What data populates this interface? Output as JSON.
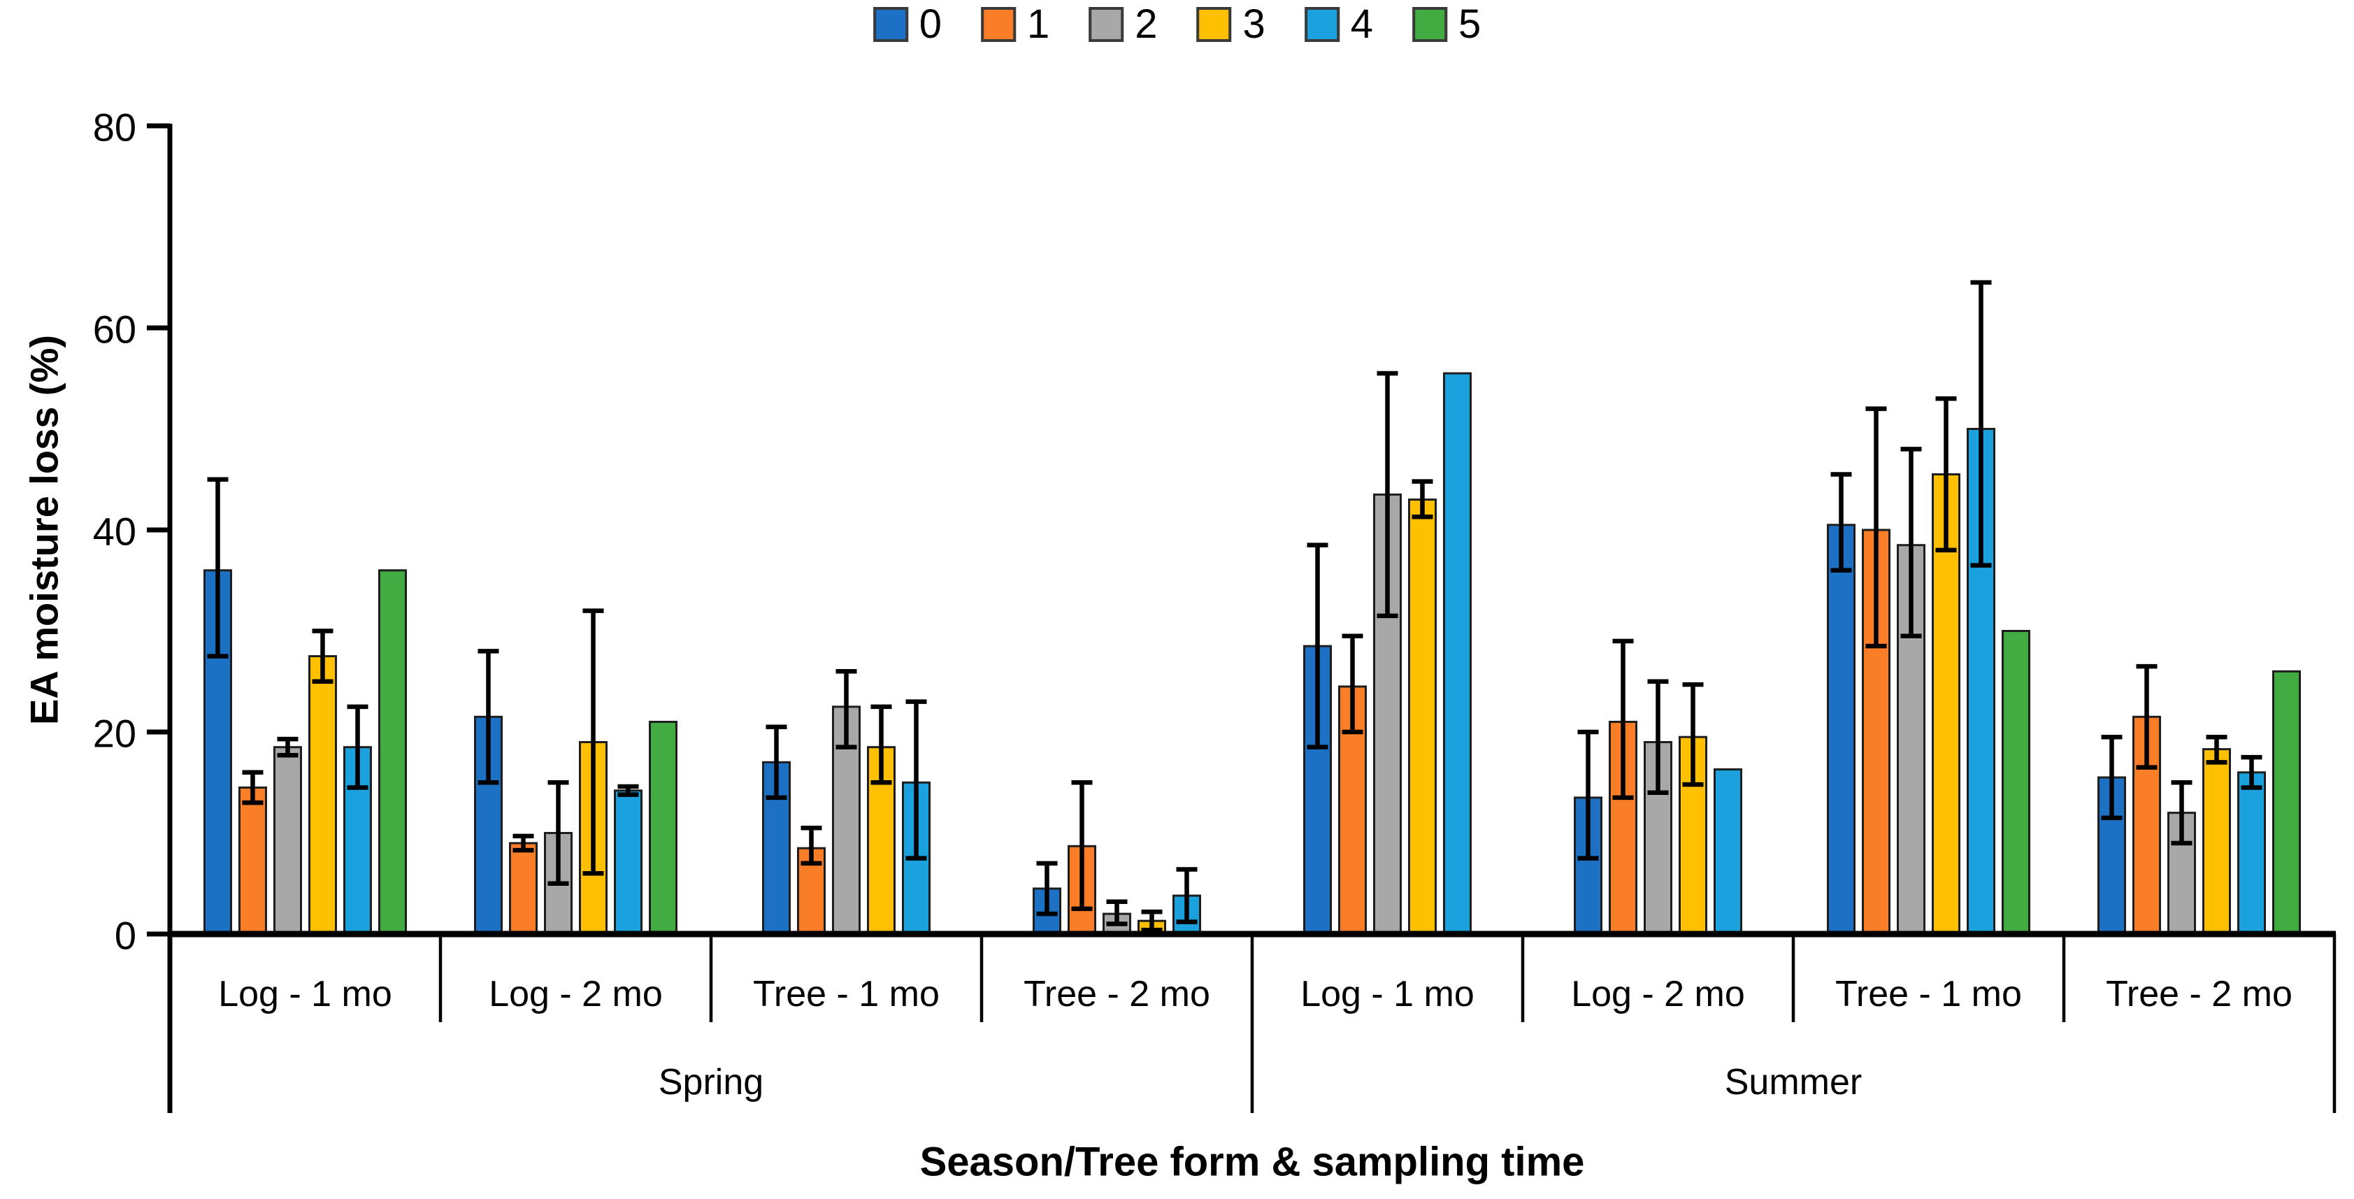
{
  "figure": {
    "background": "#ffffff"
  },
  "chart_data": {
    "type": "bar",
    "title": "",
    "ylabel": "EA moisture loss (%)",
    "xlabel": "Season/Tree form & sampling time",
    "ylim": [
      0,
      80
    ],
    "yticks": [
      0,
      20,
      40,
      60,
      80
    ],
    "grid": false,
    "legend_position": "top-center",
    "error_bars": true,
    "bar_outline_color": "#1e1e1e",
    "error_bar_color": "#000000",
    "series": [
      {
        "name": "0",
        "color": "#1d71c5"
      },
      {
        "name": "1",
        "color": "#fa7d28"
      },
      {
        "name": "2",
        "color": "#a8a8a8"
      },
      {
        "name": "3",
        "color": "#ffc002"
      },
      {
        "name": "4",
        "color": "#1ba1dd"
      },
      {
        "name": "5",
        "color": "#42ac42"
      }
    ],
    "seasons": [
      {
        "label": "Spring",
        "groups": [
          {
            "label": "Log - 1 mo",
            "bars": [
              {
                "series": "0",
                "value": 36,
                "err_low": 27.5,
                "err_high": 45
              },
              {
                "series": "1",
                "value": 14.5,
                "err_low": 13,
                "err_high": 16
              },
              {
                "series": "2",
                "value": 18.5,
                "err_low": 17.7,
                "err_high": 19.3
              },
              {
                "series": "3",
                "value": 27.5,
                "err_low": 25,
                "err_high": 30
              },
              {
                "series": "4",
                "value": 18.5,
                "err_low": 14.5,
                "err_high": 22.5
              },
              {
                "series": "5",
                "value": 36,
                "err_low": null,
                "err_high": null
              }
            ]
          },
          {
            "label": "Log - 2 mo",
            "bars": [
              {
                "series": "0",
                "value": 21.5,
                "err_low": 15,
                "err_high": 28
              },
              {
                "series": "1",
                "value": 9,
                "err_low": 8.3,
                "err_high": 9.7
              },
              {
                "series": "2",
                "value": 10,
                "err_low": 5,
                "err_high": 15
              },
              {
                "series": "3",
                "value": 19,
                "err_low": 6,
                "err_high": 32
              },
              {
                "series": "4",
                "value": 14.2,
                "err_low": 13.8,
                "err_high": 14.6
              },
              {
                "series": "5",
                "value": 21,
                "err_low": null,
                "err_high": null
              }
            ]
          },
          {
            "label": "Tree - 1 mo",
            "bars": [
              {
                "series": "0",
                "value": 17,
                "err_low": 13.5,
                "err_high": 20.5
              },
              {
                "series": "1",
                "value": 8.5,
                "err_low": 7,
                "err_high": 10.5
              },
              {
                "series": "2",
                "value": 22.5,
                "err_low": 18.5,
                "err_high": 26
              },
              {
                "series": "3",
                "value": 18.5,
                "err_low": 15,
                "err_high": 22.5
              },
              {
                "series": "4",
                "value": 15,
                "err_low": 7.5,
                "err_high": 23
              }
            ]
          },
          {
            "label": "Tree - 2 mo",
            "bars": [
              {
                "series": "0",
                "value": 4.5,
                "err_low": 2,
                "err_high": 7
              },
              {
                "series": "1",
                "value": 8.7,
                "err_low": 2.5,
                "err_high": 15
              },
              {
                "series": "2",
                "value": 2,
                "err_low": 1,
                "err_high": 3.2
              },
              {
                "series": "3",
                "value": 1.3,
                "err_low": 0.4,
                "err_high": 2.2
              },
              {
                "series": "4",
                "value": 3.8,
                "err_low": 1.2,
                "err_high": 6.4
              }
            ]
          }
        ]
      },
      {
        "label": "Summer",
        "groups": [
          {
            "label": "Log - 1 mo",
            "bars": [
              {
                "series": "0",
                "value": 28.5,
                "err_low": 18.5,
                "err_high": 38.5
              },
              {
                "series": "1",
                "value": 24.5,
                "err_low": 20,
                "err_high": 29.5
              },
              {
                "series": "2",
                "value": 43.5,
                "err_low": 31.5,
                "err_high": 55.5
              },
              {
                "series": "3",
                "value": 43,
                "err_low": 41.3,
                "err_high": 44.8
              },
              {
                "series": "4",
                "value": 55.5,
                "err_low": null,
                "err_high": null
              }
            ]
          },
          {
            "label": "Log - 2 mo",
            "bars": [
              {
                "series": "0",
                "value": 13.5,
                "err_low": 7.5,
                "err_high": 20
              },
              {
                "series": "1",
                "value": 21,
                "err_low": 13.5,
                "err_high": 29
              },
              {
                "series": "2",
                "value": 19,
                "err_low": 14,
                "err_high": 25
              },
              {
                "series": "3",
                "value": 19.5,
                "err_low": 14.8,
                "err_high": 24.7
              },
              {
                "series": "4",
                "value": 16.3,
                "err_low": null,
                "err_high": null
              }
            ]
          },
          {
            "label": "Tree - 1 mo",
            "bars": [
              {
                "series": "0",
                "value": 40.5,
                "err_low": 36,
                "err_high": 45.5
              },
              {
                "series": "1",
                "value": 40,
                "err_low": 28.5,
                "err_high": 52
              },
              {
                "series": "2",
                "value": 38.5,
                "err_low": 29.5,
                "err_high": 48
              },
              {
                "series": "3",
                "value": 45.5,
                "err_low": 38,
                "err_high": 53
              },
              {
                "series": "4",
                "value": 50,
                "err_low": 36.5,
                "err_high": 64.5
              },
              {
                "series": "5",
                "value": 30,
                "err_low": null,
                "err_high": null
              }
            ]
          },
          {
            "label": "Tree - 2 mo",
            "bars": [
              {
                "series": "0",
                "value": 15.5,
                "err_low": 11.5,
                "err_high": 19.5
              },
              {
                "series": "1",
                "value": 21.5,
                "err_low": 16.5,
                "err_high": 26.5
              },
              {
                "series": "2",
                "value": 12,
                "err_low": 9,
                "err_high": 15
              },
              {
                "series": "3",
                "value": 18.3,
                "err_low": 17,
                "err_high": 19.5
              },
              {
                "series": "4",
                "value": 16,
                "err_low": 14.5,
                "err_high": 17.5
              },
              {
                "series": "5",
                "value": 26,
                "err_low": null,
                "err_high": null
              }
            ]
          }
        ]
      }
    ]
  }
}
